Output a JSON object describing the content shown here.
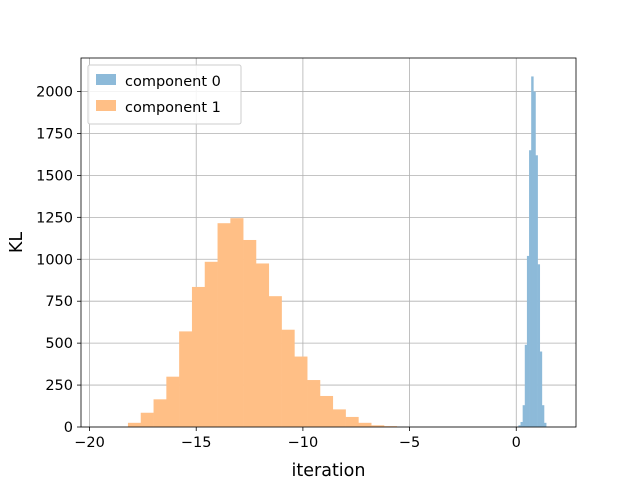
{
  "chart_data": {
    "type": "histogram",
    "title": "",
    "xlabel": "iteration",
    "ylabel": "KL",
    "xlim": [
      -20.4,
      2.8
    ],
    "ylim": [
      0,
      2200
    ],
    "xticks": [
      -20,
      -15,
      -10,
      -5,
      0
    ],
    "yticks": [
      0,
      250,
      500,
      750,
      1000,
      1250,
      1500,
      1750,
      2000
    ],
    "grid": true,
    "legend": {
      "placement": "top-left",
      "entries": [
        "component 0",
        "component 1"
      ]
    },
    "series": [
      {
        "name": "component 0",
        "color": "#8dbad9",
        "bin_start": 0.1,
        "bin_width": 0.1,
        "counts": [
          10,
          30,
          130,
          490,
          1020,
          1650,
          2090,
          2000,
          1620,
          970,
          450,
          130,
          25
        ]
      },
      {
        "name": "component 1",
        "color": "#ffbf86",
        "bin_start": -18.2,
        "bin_width": 0.6,
        "counts": [
          25,
          85,
          165,
          300,
          570,
          835,
          985,
          1215,
          1245,
          1115,
          975,
          780,
          580,
          420,
          280,
          185,
          105,
          60,
          25,
          10,
          5
        ]
      }
    ]
  }
}
